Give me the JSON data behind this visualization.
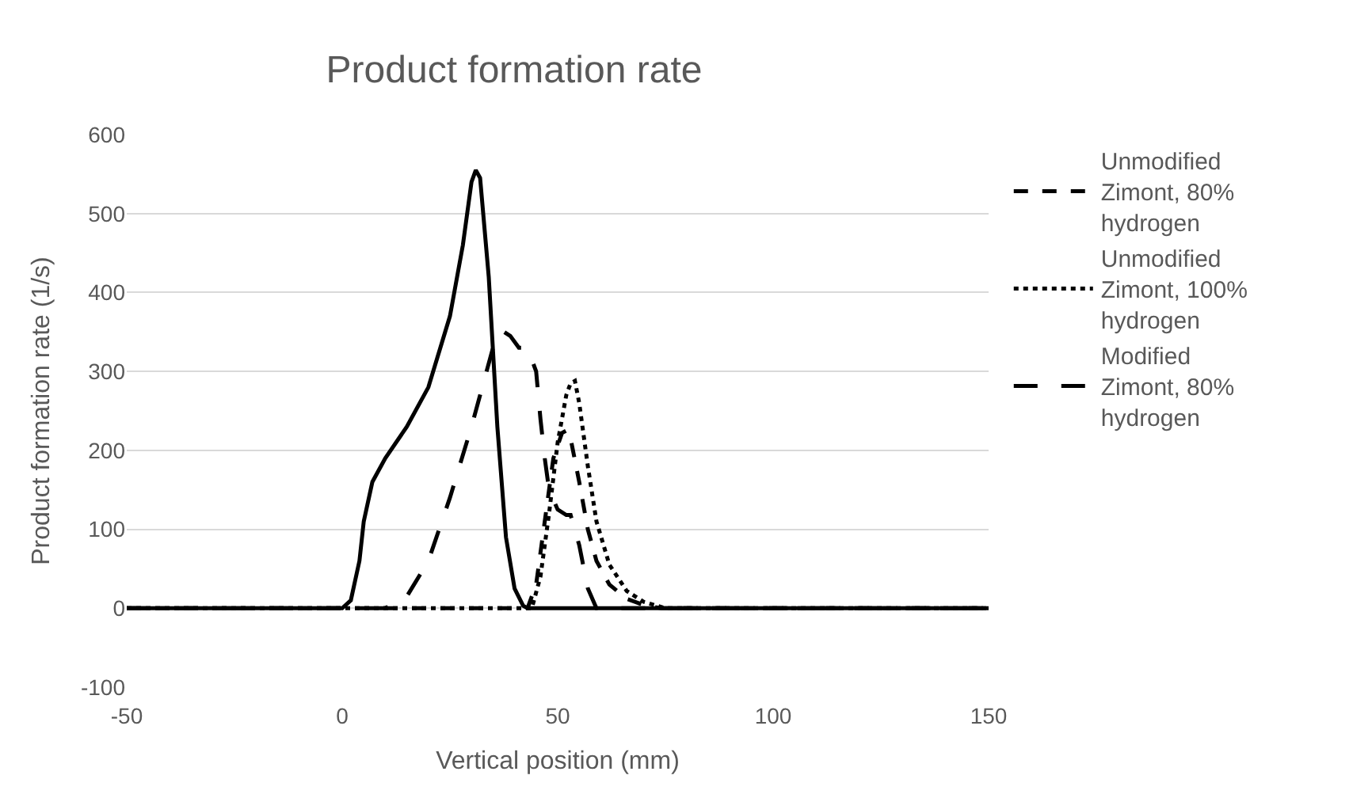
{
  "chart_data": {
    "type": "line",
    "title": "Product formation rate",
    "xlabel": "Vertical position (mm)",
    "ylabel": "Product formation rate (1/s)",
    "xlim": [
      -50,
      150
    ],
    "xticks": [
      -50,
      0,
      50,
      100,
      150
    ],
    "ylim": [
      -100,
      600
    ],
    "yticks": [
      -100,
      0,
      100,
      200,
      300,
      400,
      500,
      600
    ],
    "grid": "y",
    "legend": "right",
    "marker": "none",
    "series": [
      {
        "name": "Unmodified Zimont, 80% hydrogen",
        "color": "#000000",
        "line_style": "dashed",
        "x": [
          -50,
          43,
          45,
          47,
          49,
          51,
          52,
          53,
          55,
          57,
          59,
          62,
          66,
          70,
          74,
          150
        ],
        "values": [
          0,
          0,
          30,
          110,
          190,
          222,
          225,
          215,
          160,
          100,
          60,
          30,
          12,
          4,
          0,
          0
        ]
      },
      {
        "name": "Unmodified Zimont, 100% hydrogen",
        "color": "#000000",
        "line_style": "dotted",
        "x": [
          -50,
          44,
          46,
          48,
          50,
          52,
          53,
          54,
          55,
          57,
          59,
          62,
          66,
          70,
          75,
          150
        ],
        "values": [
          0,
          0,
          40,
          120,
          210,
          270,
          285,
          288,
          260,
          180,
          110,
          55,
          22,
          8,
          0,
          0
        ]
      },
      {
        "name": "Modified Zimont, 80% hydrogen",
        "color": "#000000",
        "line_style": "long-dash",
        "x": [
          -50,
          10,
          15,
          20,
          25,
          30,
          35,
          37,
          39,
          41,
          43,
          45,
          46,
          47,
          48,
          50,
          52,
          53,
          55,
          57,
          59,
          150
        ],
        "values": [
          0,
          0,
          15,
          60,
          140,
          230,
          330,
          352,
          345,
          330,
          330,
          300,
          240,
          190,
          150,
          125,
          118,
          118,
          80,
          25,
          0,
          0
        ]
      },
      {
        "color": "#000000",
        "line_style": "solid",
        "x": [
          -50,
          0,
          2,
          4,
          5,
          7,
          10,
          15,
          20,
          25,
          28,
          30,
          31,
          32,
          34,
          36,
          38,
          40,
          42,
          43,
          150
        ],
        "values": [
          0,
          0,
          10,
          60,
          110,
          160,
          190,
          230,
          280,
          370,
          460,
          540,
          555,
          545,
          420,
          230,
          90,
          25,
          3,
          0,
          0
        ]
      }
    ]
  }
}
